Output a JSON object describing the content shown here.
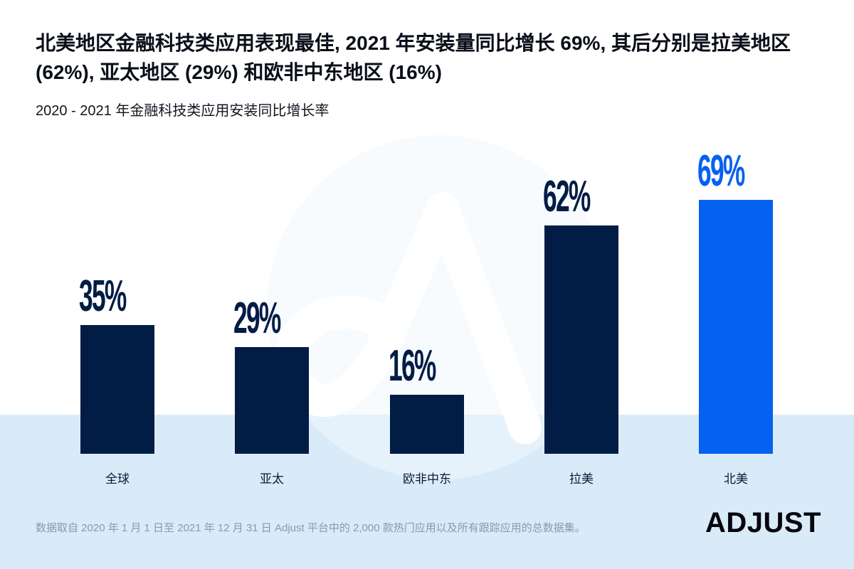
{
  "page": {
    "background": "#FFFFFF",
    "band_color": "#D9EBF8",
    "watermark_circle_color": "rgba(240,247,253,0.55)",
    "watermark_glyph_color": "#FFFFFF"
  },
  "header": {
    "title_line1": "北美地区金融科技类应用表现最佳, 2021 年安装量同比增长 69%, 其后分别是拉美地区",
    "title_line2": "(62%), 亚太地区 (29%) 和欧非中东地区 (16%)",
    "subtitle": "2020 - 2021 年金融科技类应用安装同比增长率"
  },
  "chart_data": {
    "type": "bar",
    "title": "2020 - 2021 年金融科技类应用安装同比增长率",
    "categories": [
      "全球",
      "亚太",
      "欧非中东",
      "拉美",
      "北美"
    ],
    "values": [
      35,
      29,
      16,
      62,
      69
    ],
    "value_labels": [
      "35%",
      "29%",
      "16%",
      "62%",
      "69%"
    ],
    "unit": "同比增长率 (%)",
    "highlight_index": 4,
    "colors": {
      "bar_default": "#011C45",
      "bar_highlight": "#0561F0"
    },
    "ylim": [
      0,
      75
    ],
    "grid": false,
    "legend": false,
    "orientation": "vertical"
  },
  "watermark": {
    "icon": "adjust-a-logo"
  },
  "footer": {
    "source_note": "数据取自 2020 年 1 月 1 日至 2021 年 12 月 31 日 Adjust 平台中的 2,000 款热门应用以及所有跟踪应用的总数据集。",
    "brand": "ADJUST"
  }
}
